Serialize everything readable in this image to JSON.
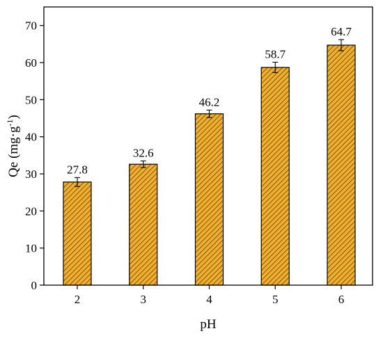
{
  "chart_data": {
    "type": "bar",
    "title": "",
    "xlabel": "pH",
    "ylabel": {
      "main": "Qe (mg·g",
      "superscript": "-1",
      "close": ")"
    },
    "categories": [
      "2",
      "3",
      "4",
      "5",
      "6"
    ],
    "values": [
      27.8,
      32.6,
      46.2,
      58.7,
      64.7
    ],
    "value_labels": [
      "27.8",
      "32.6",
      "46.2",
      "58.7",
      "64.7"
    ],
    "error": [
      1.2,
      0.9,
      1.0,
      1.4,
      1.5
    ],
    "ylim": [
      0,
      75
    ],
    "yticks": [
      "0",
      "10",
      "20",
      "30",
      "40",
      "50",
      "60",
      "70"
    ],
    "grid": false,
    "legend": "none",
    "bar_color": "#F2AF2E",
    "hatch_color": "#5A4205"
  }
}
